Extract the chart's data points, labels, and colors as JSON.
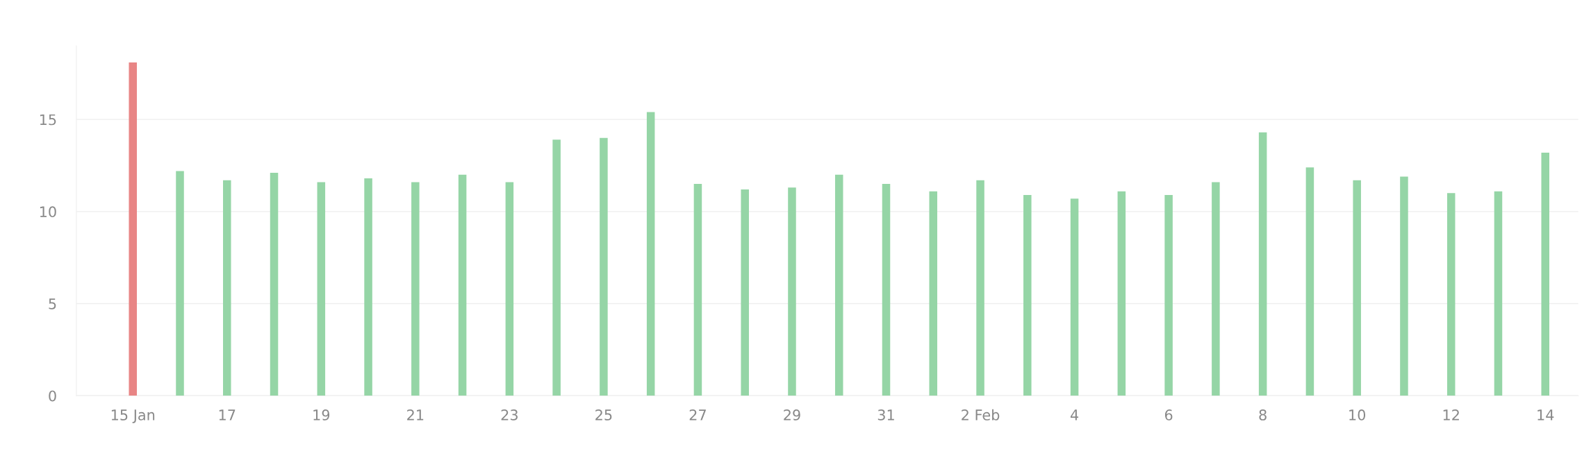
{
  "chart_data": {
    "type": "bar",
    "categories": [
      "15 Jan",
      null,
      "17",
      null,
      "19",
      null,
      "21",
      null,
      "23",
      null,
      "25",
      null,
      "27",
      null,
      "29",
      null,
      "31",
      null,
      "2 Feb",
      null,
      "4",
      null,
      "6",
      null,
      "8",
      null,
      "10",
      null,
      "12",
      null,
      "14"
    ],
    "values": [
      18.1,
      12.2,
      11.7,
      12.1,
      11.6,
      11.8,
      11.6,
      12.0,
      11.6,
      13.9,
      14.0,
      15.4,
      11.5,
      11.2,
      11.3,
      12.0,
      11.5,
      11.1,
      11.7,
      10.9,
      10.7,
      11.1,
      10.9,
      11.6,
      14.3,
      12.4,
      11.7,
      11.9,
      11.0,
      11.1,
      13.2
    ],
    "colors": [
      "#e88585",
      "#95d5a6",
      "#95d5a6",
      "#95d5a6",
      "#95d5a6",
      "#95d5a6",
      "#95d5a6",
      "#95d5a6",
      "#95d5a6",
      "#95d5a6",
      "#95d5a6",
      "#95d5a6",
      "#95d5a6",
      "#95d5a6",
      "#95d5a6",
      "#95d5a6",
      "#95d5a6",
      "#95d5a6",
      "#95d5a6",
      "#95d5a6",
      "#95d5a6",
      "#95d5a6",
      "#95d5a6",
      "#95d5a6",
      "#95d5a6",
      "#95d5a6",
      "#95d5a6",
      "#95d5a6",
      "#95d5a6",
      "#95d5a6",
      "#95d5a6"
    ],
    "ylim": [
      0,
      19
    ],
    "yticks": [
      0,
      5,
      10,
      15
    ],
    "grid": "y"
  }
}
